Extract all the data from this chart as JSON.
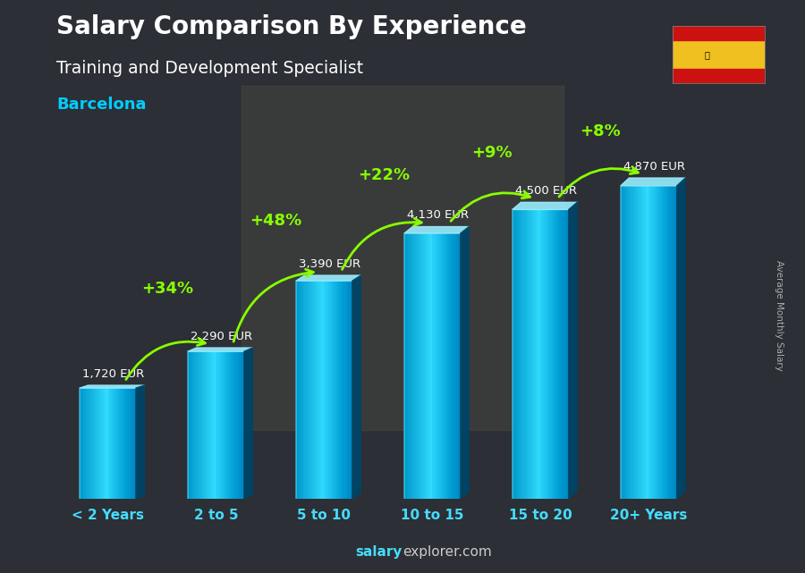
{
  "title": "Salary Comparison By Experience",
  "subtitle": "Training and Development Specialist",
  "city": "Barcelona",
  "categories": [
    "< 2 Years",
    "2 to 5",
    "5 to 10",
    "10 to 15",
    "15 to 20",
    "20+ Years"
  ],
  "values": [
    1720,
    2290,
    3390,
    4130,
    4500,
    4870
  ],
  "value_labels": [
    "1,720 EUR",
    "2,290 EUR",
    "3,390 EUR",
    "4,130 EUR",
    "4,500 EUR",
    "4,870 EUR"
  ],
  "pct_labels": [
    "+34%",
    "+48%",
    "+22%",
    "+9%",
    "+8%"
  ],
  "bar_color_left": "#0099cc",
  "bar_color_center": "#33ddff",
  "bar_color_right": "#0077aa",
  "bar_top_color": "#aaeeff",
  "bar_side_color": "#005588",
  "background_color": "#3a3a3a",
  "title_color": "#ffffff",
  "subtitle_color": "#ffffff",
  "city_color": "#00ccff",
  "value_label_color": "#ffffff",
  "pct_color": "#88ff00",
  "xlabel_color": "#44ddff",
  "footer_salary_color": "#44ddff",
  "footer_rest_color": "#cccccc",
  "ylabel_text": "Average Monthly Salary",
  "ylim_max": 5800,
  "bar_width": 0.52
}
